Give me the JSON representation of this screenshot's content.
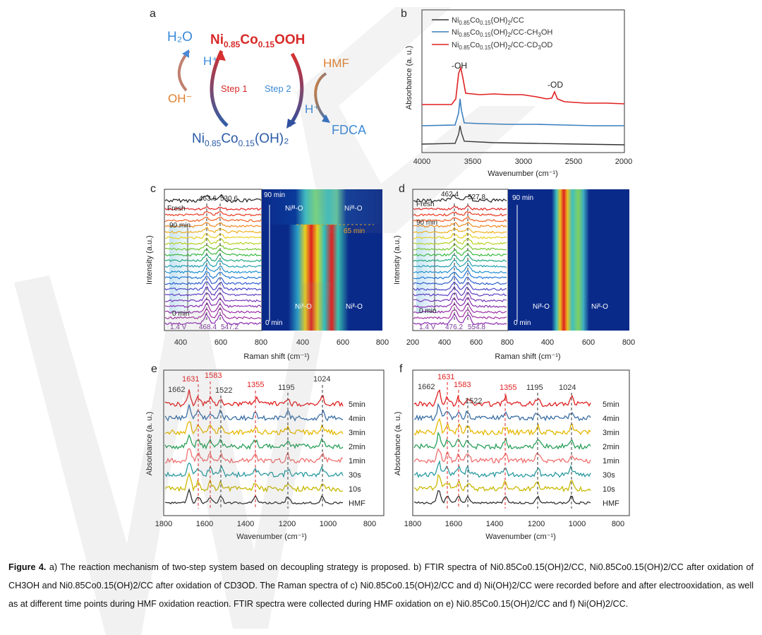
{
  "panels": {
    "a": {
      "label": "a",
      "h2o": "H₂O",
      "nicooh_pre": "Ni",
      "nicooh_s1": "0.85",
      "nicooh_mid": "Co",
      "nicooh_s2": "0.15",
      "nicooh_post": "OOH",
      "hplus_left": "H⁺",
      "oh_minus": "OH⁻",
      "step1": "Step 1",
      "step2": "Step 2",
      "hmf": "HMF",
      "hplus_right": "H⁺",
      "fdca": "FDCA",
      "nicooh2_pre": "Ni",
      "nicooh2_s1": "0.85",
      "nicooh2_mid": "Co",
      "nicooh2_s2": "0.15",
      "nicooh2_post": "(OH)₂"
    },
    "b": {
      "label": "b",
      "legend": [
        {
          "text": "Ni0.85Co0.15(OH)2/CC",
          "color": "#333333"
        },
        {
          "text": "Ni0.85Co0.15(OH)2/CC-CH3OH",
          "color": "#3a7fc1"
        },
        {
          "text": "Ni0.85Co0.15(OH)2/CC-CD3OD",
          "color": "#e02020"
        }
      ],
      "peak_oh": "-OH",
      "peak_od": "-OD",
      "ylabel": "Absorbance (a. u.)",
      "xlabel": "Wavenumber (cm⁻¹)",
      "xticks": [
        "4000",
        "3500",
        "3000",
        "2500",
        "2000"
      ]
    },
    "c": {
      "label": "c",
      "fresh": "Fresh",
      "t90": "90 min",
      "t0": "0 min",
      "potential": "1.4 V",
      "peak_top1": "463.6",
      "peak_top2": "530.6",
      "peak_bot1": "468.4",
      "peak_bot2": "547.2",
      "ylabel": "Intensity (a.u.)",
      "xticks_left": [
        "400",
        "600",
        "800"
      ],
      "xticks_right": [
        "400",
        "600",
        "800"
      ],
      "heat_t90": "90 min",
      "heat_t0": "0 min",
      "heat_65": "65 min",
      "ni3_l": "Niᴵᴵᴵ-O",
      "ni3_r": "Niᴵᴵᴵ-O",
      "ni2_l": "Niᴵᴵ-O",
      "ni2_r": "Niᴵᴵ-O",
      "xlabel": "Raman shift (cm⁻¹)"
    },
    "d": {
      "label": "d",
      "fresh": "Fresh",
      "t90": "90 min",
      "t0": "0 min",
      "potential": "1.4 V",
      "peak_top1": "462.4",
      "peak_top2": "527.8",
      "peak_bot1": "476.2",
      "peak_bot2": "554.8",
      "ylabel": "Intensity (a.u.)",
      "xticks_left": [
        "200",
        "400",
        "600",
        "800"
      ],
      "xticks_right": [
        "400",
        "600",
        "800"
      ],
      "heat_t90": "90 min",
      "heat_t0": "0 min",
      "ni2_l": "Niᴵᴵ-O",
      "ni2_r": "Niᴵᴵ-O",
      "xlabel": "Raman shift (cm⁻¹)"
    },
    "e": {
      "label": "e",
      "peaks_red": [
        "1631",
        "1583",
        "1355"
      ],
      "peaks_gray": [
        "1662",
        "1522",
        "1195",
        "1024"
      ],
      "series": [
        "5min",
        "4min",
        "3min",
        "2min",
        "1min",
        "30s",
        "10s",
        "HMF"
      ],
      "ylabel": "Absorbance (a. u.)",
      "xlabel": "Wavenumber (cm⁻¹)",
      "xticks": [
        "1800",
        "1600",
        "1400",
        "1200",
        "1000",
        "800"
      ]
    },
    "f": {
      "label": "f",
      "peaks_red": [
        "1631",
        "1583",
        "1355"
      ],
      "peaks_gray": [
        "1662",
        "1522",
        "1195",
        "1024"
      ],
      "series": [
        "5min",
        "4min",
        "3min",
        "2min",
        "1min",
        "30s",
        "10s",
        "HMF"
      ],
      "ylabel": "Absorbance (a. u.)",
      "xlabel": "Wavenumber (cm⁻¹)",
      "xticks": [
        "1800",
        "1600",
        "1400",
        "1200",
        "1000",
        "800"
      ]
    }
  },
  "series_colors": [
    "#e02020",
    "#3a6ea5",
    "#e6b800",
    "#2aa05a",
    "#f07070",
    "#2a9aa0",
    "#c8b800",
    "#333333"
  ],
  "caption": {
    "lead": "Figure 4.",
    "text": "a) The reaction mechanism of two-step system based on decoupling strategy is proposed. b) FTIR spectra of Ni0.85Co0.15(OH)2/CC, Ni0.85Co0.15(OH)2/CC after oxidation of CH3OH and Ni0.85Co0.15(OH)2/CC after oxidation of CD3OD. The Raman spectra of c) Ni0.85Co0.15(OH)2/CC and d) Ni(OH)2/CC were recorded before and after electrooxidation, as well as at different time points during HMF oxidation reaction. FTIR spectra were collected during HMF oxidation on e) Ni0.85Co0.15(OH)2/CC and f) Ni(OH)2/CC."
  }
}
